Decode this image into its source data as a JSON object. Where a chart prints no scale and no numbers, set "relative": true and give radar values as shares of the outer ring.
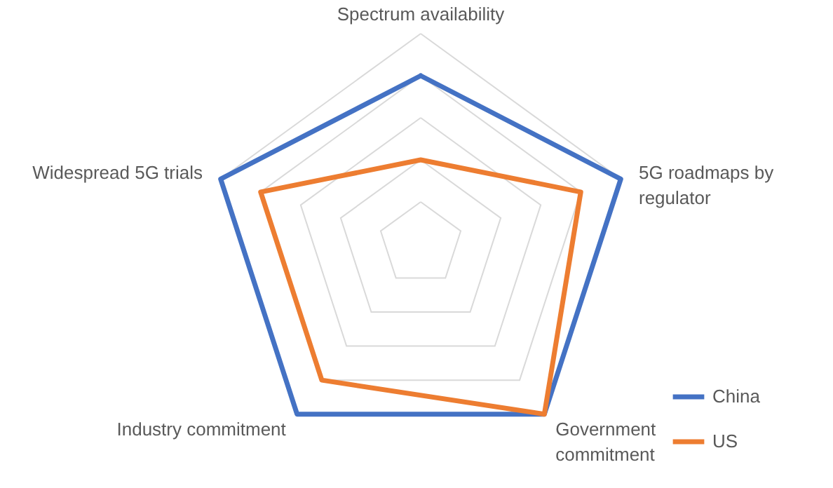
{
  "chart_data": {
    "type": "radar",
    "relative": true,
    "grid": true,
    "legend": "bottom right",
    "categories": [
      "Spectrum availability",
      "5G roadmaps by regulator",
      "Government commitment",
      "Industry commitment",
      "Widespread 5G trials"
    ],
    "series": [
      {
        "name": "China",
        "color": "#4472c4",
        "values": [
          0.8,
          1,
          1,
          1,
          1
        ]
      },
      {
        "name": "US",
        "color": "#ed7d31",
        "values": [
          0.4,
          0.8,
          1,
          0.8,
          0.8
        ]
      }
    ]
  }
}
